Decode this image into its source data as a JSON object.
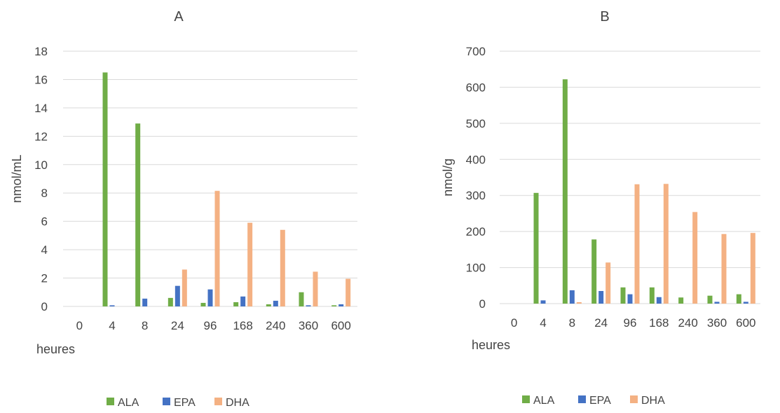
{
  "chart_data": [
    {
      "type": "bar",
      "title": "A",
      "xlabel": "heures",
      "ylabel": "nmol/mL",
      "ylim": [
        0,
        18
      ],
      "yticks": [
        0,
        2,
        4,
        6,
        8,
        10,
        12,
        14,
        16,
        18
      ],
      "grid": true,
      "legend": "bottom",
      "categories": [
        "0",
        "4",
        "8",
        "24",
        "96",
        "168",
        "240",
        "360",
        "600"
      ],
      "series": [
        {
          "name": "ALA",
          "color": "#70ad47",
          "values": [
            0,
            16.5,
            12.9,
            0.6,
            0.25,
            0.3,
            0.15,
            1.0,
            0.08
          ]
        },
        {
          "name": "EPA",
          "color": "#4472c4",
          "values": [
            0,
            0.08,
            0.55,
            1.45,
            1.2,
            0.7,
            0.4,
            0.08,
            0.15
          ]
        },
        {
          "name": "DHA",
          "color": "#f4b183",
          "values": [
            0,
            0,
            0,
            2.6,
            8.15,
            5.9,
            5.4,
            2.45,
            1.95
          ]
        }
      ]
    },
    {
      "type": "bar",
      "title": "B",
      "xlabel": "heures",
      "ylabel": "nmol/g",
      "ylim": [
        0,
        700
      ],
      "yticks": [
        0,
        100,
        200,
        300,
        400,
        500,
        600,
        700
      ],
      "grid": true,
      "legend": "bottom",
      "categories": [
        "0",
        "4",
        "8",
        "24",
        "96",
        "168",
        "240",
        "360",
        "600"
      ],
      "series": [
        {
          "name": "ALA",
          "color": "#70ad47",
          "values": [
            0,
            307,
            622,
            178,
            45,
            45,
            17,
            22,
            26
          ]
        },
        {
          "name": "EPA",
          "color": "#4472c4",
          "values": [
            0,
            9,
            37,
            35,
            26,
            18,
            0,
            5,
            5
          ]
        },
        {
          "name": "DHA",
          "color": "#f4b183",
          "values": [
            0,
            0,
            4,
            114,
            331,
            332,
            254,
            193,
            196
          ]
        }
      ]
    }
  ]
}
